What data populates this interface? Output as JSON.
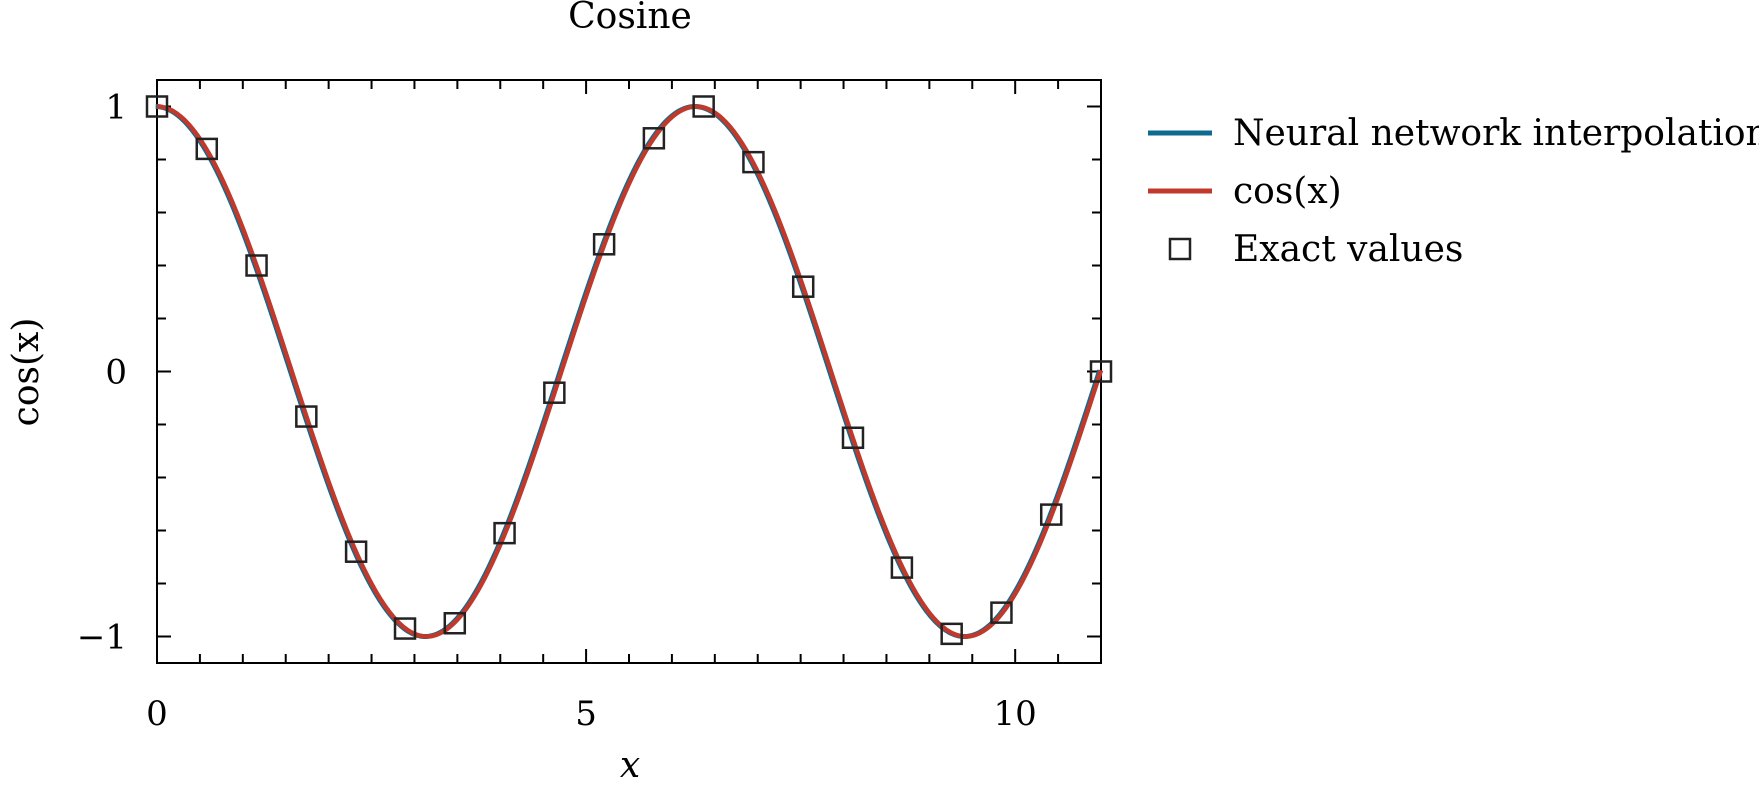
{
  "chart_data": {
    "type": "line",
    "title": "Cosine",
    "xlabel": "x",
    "ylabel": "cos(x)",
    "xlim": [
      0,
      11
    ],
    "ylim": [
      -1.1,
      1.1
    ],
    "xticks": [
      0,
      5,
      10
    ],
    "xtick_labels": [
      "0",
      "5",
      "10"
    ],
    "yticks": [
      -1,
      0,
      1
    ],
    "ytick_labels": [
      "−1",
      "0",
      "1"
    ],
    "grid": false,
    "legend_position": "outside-right-top",
    "series": [
      {
        "name": "Neural network interpolation",
        "kind": "line",
        "color": "#0f6a8f",
        "function": "cos",
        "domain": [
          0,
          11
        ]
      },
      {
        "name": "cos(x)",
        "kind": "line",
        "color": "#c0392b",
        "function": "cos",
        "domain": [
          0,
          11
        ]
      },
      {
        "name": "Exact values",
        "kind": "markers",
        "marker": "square",
        "color": "#222222",
        "x": [
          0.0,
          0.58,
          1.16,
          1.74,
          2.32,
          2.89,
          3.47,
          4.05,
          4.63,
          5.21,
          5.79,
          6.37,
          6.95,
          7.53,
          8.11,
          8.68,
          9.26,
          9.84,
          10.42,
          11.0
        ],
        "y": [
          1.0,
          0.84,
          0.4,
          -0.17,
          -0.68,
          -0.97,
          -0.95,
          -0.61,
          -0.08,
          0.48,
          0.88,
          1.0,
          0.79,
          0.32,
          -0.25,
          -0.74,
          -0.99,
          -0.91,
          -0.54,
          0.0
        ]
      }
    ]
  }
}
